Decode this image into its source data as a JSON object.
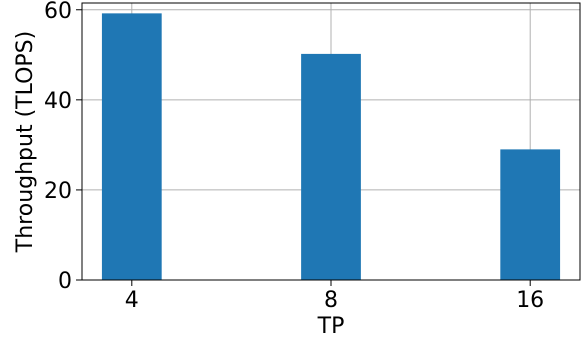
{
  "chart_data": {
    "type": "bar",
    "categories": [
      "4",
      "8",
      "16"
    ],
    "values": [
      59.2,
      50.2,
      29.0
    ],
    "xlabel": "TP",
    "ylabel": "Throughput (TLOPS)",
    "ylim": [
      0,
      61.5
    ],
    "yticks": [
      0,
      20,
      40,
      60
    ],
    "grid": true,
    "bar_color": "#1f77b4",
    "grid_color": "#b0b0b0"
  }
}
